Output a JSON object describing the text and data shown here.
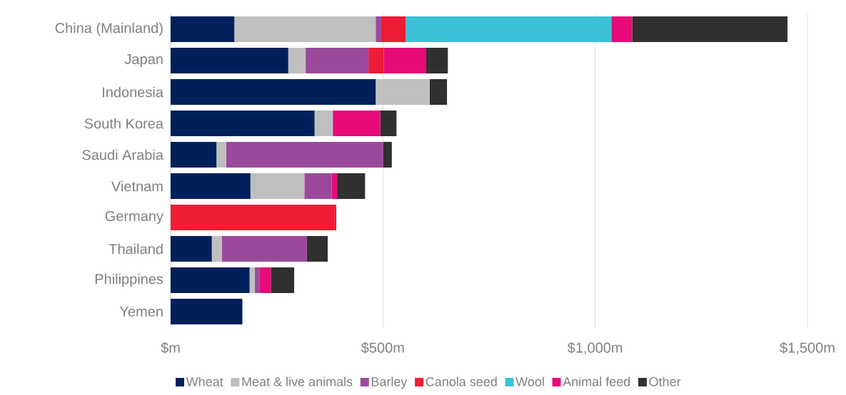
{
  "chart_data": {
    "type": "bar",
    "orientation": "horizontal",
    "stacked": true,
    "categories": [
      "China (Mainland)",
      "Japan",
      "Indonesia",
      "South Korea",
      "Saudi Arabia",
      "Vietnam",
      "Germany",
      "Thailand",
      "Philippines",
      "Yemen"
    ],
    "series": [
      {
        "name": "Wheat",
        "color": "#00205b",
        "values": [
          150,
          277,
          483,
          339,
          108,
          188,
          0,
          97,
          186,
          169
        ]
      },
      {
        "name": "Meat & live animals",
        "color": "#bfbfbf",
        "values": [
          333,
          41,
          127,
          42,
          23,
          127,
          0,
          24,
          12,
          0
        ]
      },
      {
        "name": "Barley",
        "color": "#9b4a9b",
        "values": [
          13,
          148,
          0,
          2,
          370,
          64,
          0,
          200,
          12,
          0
        ]
      },
      {
        "name": "Canola seed",
        "color": "#ee1c35",
        "values": [
          58,
          36,
          0,
          0,
          0,
          0,
          388,
          0,
          0,
          0
        ]
      },
      {
        "name": "Wool",
        "color": "#3bc2d6",
        "values": [
          484,
          0,
          0,
          0,
          0,
          0,
          0,
          0,
          0,
          0
        ]
      },
      {
        "name": "Animal feed",
        "color": "#e60b78",
        "values": [
          49,
          100,
          0,
          111,
          0,
          13,
          0,
          null,
          26,
          0
        ]
      },
      {
        "name": "Other",
        "color": "#303030",
        "values": [
          366,
          51,
          41,
          38,
          20,
          66,
          2,
          49,
          55,
          0
        ]
      }
    ],
    "xlim": [
      0,
      1500
    ],
    "xticks": [
      {
        "value": 0,
        "label": "$m"
      },
      {
        "value": 500,
        "label": "$500m"
      },
      {
        "value": 1000,
        "label": "$1,000m"
      },
      {
        "value": 1500,
        "label": "$1,500m"
      }
    ],
    "grid": "x",
    "legend": "bottom"
  }
}
